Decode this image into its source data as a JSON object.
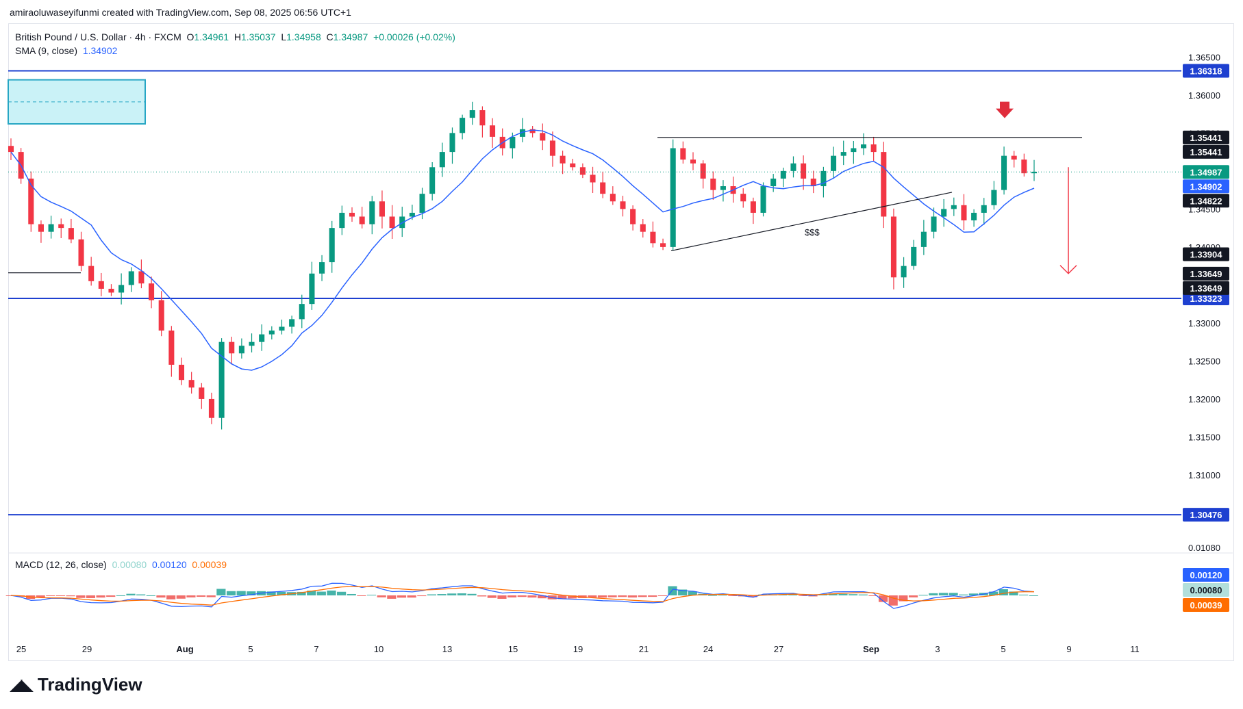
{
  "credit": "amiraoluwaseyifunmi created with TradingView.com, Sep 08, 2025 06:56 UTC+1",
  "legend": {
    "symbol": "British Pound / U.S. Dollar · 4h · FXCM",
    "o_label": "O",
    "o_value": "1.34961",
    "h_label": "H",
    "h_value": "1.35037",
    "l_label": "L",
    "l_value": "1.34958",
    "c_label": "C",
    "c_value": "1.34987",
    "change": "+0.00026 (+0.02%)",
    "sma_label": "SMA (9, close)",
    "sma_value": "1.34902"
  },
  "macd_legend": {
    "label": "MACD (12, 26, close)",
    "hist": "0.00080",
    "macd": "0.00120",
    "signal": "0.00039"
  },
  "brand": "TradingView",
  "colors": {
    "up": "#089981",
    "down": "#f23645",
    "sma": "#2962ff",
    "level": "#1e40d0",
    "macd_line": "#2962ff",
    "signal_line": "#ff6d00",
    "zone_fill": "#bdeff5",
    "zone_border": "#26a6c4"
  },
  "chart_data": {
    "type": "candlestick",
    "title": "British Pound / U.S. Dollar · 4h · FXCM",
    "xlabel": "",
    "ylabel": "",
    "ylim": [
      1.3,
      1.368
    ],
    "grid": false,
    "y_ticks": [
      "1.36500",
      "1.36000",
      "1.35500",
      "1.35000",
      "1.34500",
      "1.34000",
      "1.33500",
      "1.33000",
      "1.32500",
      "1.32000",
      "1.31500",
      "1.31000",
      "1.30500"
    ],
    "x_ticks": [
      "25",
      "29",
      "Aug",
      "5",
      "7",
      "10",
      "13",
      "15",
      "19",
      "21",
      "24",
      "27",
      "Sep",
      "3",
      "5",
      "9",
      "11"
    ],
    "close_path": [
      1.3525,
      1.349,
      1.343,
      1.342,
      1.343,
      1.3425,
      1.341,
      1.3375,
      1.3355,
      1.3345,
      1.334,
      1.335,
      1.3368,
      1.3352,
      1.333,
      1.329,
      1.3245,
      1.3225,
      1.3215,
      1.32,
      1.3175,
      1.3275,
      1.326,
      1.327,
      1.3275,
      1.3285,
      1.329,
      1.3295,
      1.3305,
      1.3325,
      1.3365,
      1.338,
      1.3425,
      1.3445,
      1.344,
      1.343,
      1.346,
      1.344,
      1.3425,
      1.344,
      1.3445,
      1.347,
      1.3505,
      1.3525,
      1.355,
      1.357,
      1.358,
      1.356,
      1.3545,
      1.353,
      1.3545,
      1.3555,
      1.355,
      1.354,
      1.352,
      1.351,
      1.3505,
      1.3495,
      1.3485,
      1.347,
      1.346,
      1.345,
      1.343,
      1.342,
      1.3405,
      1.34,
      1.353,
      1.3515,
      1.351,
      1.349,
      1.3475,
      1.348,
      1.347,
      1.346,
      1.3445,
      1.348,
      1.349,
      1.35,
      1.351,
      1.349,
      1.348,
      1.35,
      1.352,
      1.3525,
      1.353,
      1.3535,
      1.3525,
      1.344,
      1.336,
      1.3375,
      1.34,
      1.342,
      1.344,
      1.345,
      1.3455,
      1.3435,
      1.3445,
      1.3455,
      1.3475,
      1.352,
      1.3515,
      1.3497,
      1.3499
    ],
    "sma_period": 9,
    "levels": [
      1.36318,
      1.33323,
      1.30476
    ],
    "level_labels": {
      "1.36318": "1.36318",
      "1.33323": "1.33323",
      "1.30476": "1.30476"
    },
    "price_tags": [
      {
        "text": "1.35441",
        "kind": "dark"
      },
      {
        "text": "1.35441",
        "kind": "dark"
      },
      {
        "text": "1.34987",
        "kind": "up"
      },
      {
        "text": "1.34902",
        "kind": "sma"
      },
      {
        "text": "1.34822",
        "kind": "dark"
      },
      {
        "text": "1.33904",
        "kind": "dark"
      },
      {
        "text": "1.33649",
        "kind": "dark"
      },
      {
        "text": "1.33649",
        "kind": "dark"
      }
    ],
    "price_tag_values": [
      1.35441,
      1.35441,
      1.34987,
      1.34902,
      1.34822,
      1.33904,
      1.33649,
      1.33649
    ],
    "annotation_text": "$$$",
    "resistance": 1.35441,
    "macd": {
      "y_ticks": [
        "0.01080"
      ],
      "tags": [
        {
          "text": "0.00120",
          "kind": "macd"
        },
        {
          "text": "0.00080",
          "kind": "hist"
        },
        {
          "text": "0.00039",
          "kind": "signal"
        }
      ]
    }
  }
}
